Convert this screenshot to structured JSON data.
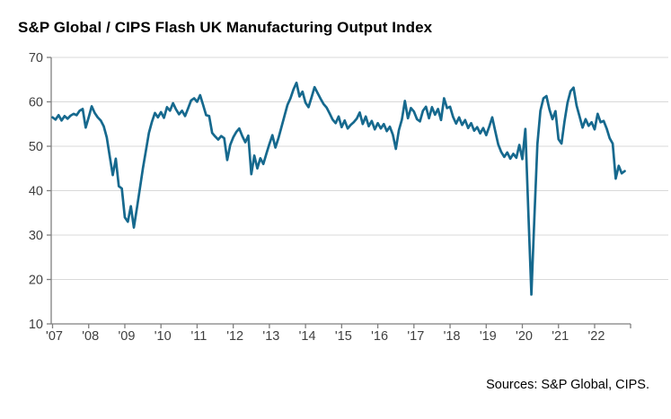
{
  "title": "S&P Global / CIPS Flash UK Manufacturing Output Index",
  "source": "Sources: S&P Global, CIPS.",
  "chart_data": {
    "type": "line",
    "title": "S&P Global / CIPS Flash UK Manufacturing Output Index",
    "x_start": "2007-01",
    "x_frequency": "monthly",
    "x_end": "2022-11",
    "x_tick_labels": [
      "'07",
      "'08",
      "'09",
      "'10",
      "'11",
      "'12",
      "'13",
      "'14",
      "'15",
      "'16",
      "'17",
      "'18",
      "'19",
      "'20",
      "'21",
      "'22"
    ],
    "y_ticks": [
      10,
      20,
      30,
      40,
      50,
      60,
      70
    ],
    "ylim": [
      10,
      70
    ],
    "grid": "horizontal",
    "legend": "none",
    "colors": {
      "line": "#16698e",
      "grid": "#d9d9d9",
      "axis": "#7f7f7f",
      "tick_text": "#404040"
    },
    "series": [
      {
        "name": "UK Manufacturing Output Index",
        "values": [
          56.5,
          56.0,
          57.0,
          55.8,
          56.8,
          56.2,
          56.9,
          57.3,
          57.0,
          58.0,
          58.4,
          54.2,
          56.5,
          59.0,
          57.5,
          56.5,
          55.8,
          54.5,
          52.0,
          47.7,
          43.5,
          47.2,
          41.0,
          40.5,
          34.0,
          33.0,
          36.5,
          31.7,
          36.0,
          40.5,
          45.0,
          49.0,
          53.0,
          55.5,
          57.5,
          56.5,
          57.7,
          56.4,
          58.8,
          58.0,
          59.7,
          58.3,
          57.2,
          58.0,
          56.8,
          58.5,
          60.3,
          60.8,
          60.0,
          61.5,
          59.3,
          57.0,
          56.8,
          53.0,
          52.2,
          51.5,
          52.3,
          51.8,
          46.9,
          50.3,
          52.0,
          53.2,
          54.0,
          52.3,
          50.9,
          52.4,
          43.7,
          47.9,
          45.0,
          47.3,
          46.0,
          48.3,
          50.5,
          52.5,
          49.7,
          51.8,
          54.3,
          56.8,
          59.3,
          60.8,
          62.8,
          64.3,
          61.2,
          62.3,
          59.8,
          58.8,
          61.0,
          63.3,
          62.0,
          60.7,
          59.5,
          58.7,
          57.4,
          56.0,
          55.2,
          56.7,
          54.3,
          55.8,
          54.0,
          54.8,
          55.4,
          56.2,
          57.6,
          55.0,
          56.7,
          54.5,
          55.7,
          53.8,
          55.2,
          54.0,
          55.0,
          53.4,
          54.4,
          52.6,
          49.4,
          53.6,
          56.0,
          60.2,
          56.3,
          58.6,
          57.8,
          56.1,
          55.6,
          58.0,
          58.9,
          56.3,
          58.8,
          57.1,
          58.4,
          55.9,
          60.8,
          58.6,
          58.9,
          56.6,
          55.1,
          56.5,
          54.8,
          55.9,
          54.1,
          55.2,
          53.5,
          54.3,
          52.9,
          54.1,
          52.5,
          54.4,
          56.5,
          53.4,
          50.4,
          48.7,
          47.6,
          48.6,
          47.2,
          48.3,
          47.4,
          50.3,
          47.1,
          53.9,
          35.0,
          16.6,
          34.0,
          50.5,
          58.0,
          60.8,
          61.3,
          58.3,
          56.1,
          57.9,
          51.6,
          50.6,
          55.6,
          59.8,
          62.4,
          63.2,
          59.2,
          56.7,
          54.2,
          56.1,
          54.6,
          55.4,
          53.8,
          57.3,
          55.4,
          55.7,
          54.0,
          51.8,
          50.6,
          42.7,
          45.6,
          43.9,
          44.4
        ]
      }
    ]
  }
}
